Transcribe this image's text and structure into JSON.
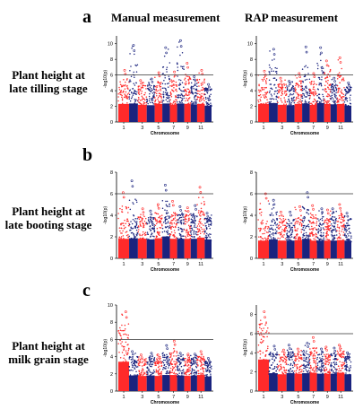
{
  "columns": [
    "Manual measurement",
    "RAP measurement"
  ],
  "panels": [
    {
      "letter": "a",
      "label": [
        "Plant height at",
        "late tilling stage"
      ]
    },
    {
      "letter": "b",
      "label": [
        "Plant height at",
        "late booting stage"
      ]
    },
    {
      "letter": "c",
      "label": [
        "Plant height at",
        "milk grain stage"
      ]
    }
  ],
  "colors": {
    "odd_chromosome": "#ff2a2a",
    "even_chromosome": "#1a237e",
    "threshold": "#333333"
  },
  "chart_data": [
    {
      "type": "scatter",
      "panel": "a",
      "column": "Manual measurement",
      "xlabel": "Chromosome",
      "ylabel": "-log10(p)",
      "xticks": [
        "1",
        "3",
        "5",
        "7",
        "9",
        "11"
      ],
      "yticks": [
        0,
        2,
        4,
        6,
        8,
        10
      ],
      "ylim": [
        0,
        11
      ],
      "threshold": 6,
      "chromosomes": [
        1,
        2,
        3,
        4,
        5,
        6,
        7,
        8,
        9,
        10,
        11,
        12
      ],
      "peak_max": [
        6.6,
        9.8,
        5.3,
        5.5,
        6.3,
        9.5,
        6.4,
        10.4,
        7.5,
        5.8,
        6.6,
        4.8
      ],
      "base": [
        4.2,
        4.3,
        4.0,
        3.9,
        4.2,
        4.3,
        4.0,
        4.3,
        4.2,
        4.1,
        4.2,
        3.8
      ]
    },
    {
      "type": "scatter",
      "panel": "a",
      "column": "RAP measurement",
      "xlabel": "Chromosome",
      "ylabel": "-log10(p)",
      "xticks": [
        "1",
        "3",
        "5",
        "7",
        "9",
        "11"
      ],
      "yticks": [
        0,
        2,
        4,
        6,
        8,
        10
      ],
      "ylim": [
        0,
        11
      ],
      "threshold": 6,
      "chromosomes": [
        1,
        2,
        3,
        4,
        5,
        6,
        7,
        8,
        9,
        10,
        11,
        12
      ],
      "peak_max": [
        6.5,
        9.3,
        5.6,
        5.2,
        6.2,
        9.6,
        6.2,
        9.5,
        7.8,
        5.6,
        8.2,
        5.0
      ],
      "base": [
        4.2,
        4.4,
        4.0,
        3.9,
        4.2,
        4.3,
        4.0,
        4.4,
        4.2,
        4.1,
        4.2,
        3.8
      ]
    },
    {
      "type": "scatter",
      "panel": "b",
      "column": "Manual measurement",
      "xlabel": "Chromosome",
      "ylabel": "-log10(p)",
      "xticks": [
        "1",
        "3",
        "5",
        "7",
        "9",
        "11"
      ],
      "yticks": [
        0,
        2,
        4,
        6,
        8
      ],
      "ylim": [
        0,
        8
      ],
      "threshold": 6,
      "chromosomes": [
        1,
        2,
        3,
        4,
        5,
        6,
        7,
        8,
        9,
        10,
        11,
        12
      ],
      "peak_max": [
        6.1,
        7.2,
        4.6,
        4.4,
        5.0,
        6.8,
        5.3,
        4.8,
        4.7,
        4.9,
        6.6,
        4.2
      ],
      "base": [
        3.3,
        3.4,
        3.3,
        3.2,
        3.4,
        3.7,
        3.3,
        3.3,
        3.3,
        3.3,
        3.5,
        3.2
      ]
    },
    {
      "type": "scatter",
      "panel": "b",
      "column": "RAP measurement",
      "xlabel": "Chromosome",
      "ylabel": "-log10(p)",
      "xticks": [
        "1",
        "3",
        "5",
        "7",
        "9",
        "11"
      ],
      "yticks": [
        0,
        2,
        4,
        6,
        8
      ],
      "ylim": [
        0,
        8
      ],
      "threshold": 6,
      "chromosomes": [
        1,
        2,
        3,
        4,
        5,
        6,
        7,
        8,
        9,
        10,
        11,
        12
      ],
      "peak_max": [
        6.0,
        5.4,
        4.3,
        4.3,
        4.8,
        6.1,
        4.9,
        4.6,
        4.5,
        4.6,
        5.0,
        4.2
      ],
      "base": [
        3.0,
        3.2,
        3.0,
        3.0,
        3.1,
        3.3,
        3.0,
        3.0,
        3.0,
        3.0,
        3.1,
        3.0
      ]
    },
    {
      "type": "scatter",
      "panel": "c",
      "column": "Manual measurement",
      "xlabel": "Chromosome",
      "ylabel": "-log10(p)",
      "xticks": [
        "1",
        "3",
        "5",
        "7",
        "9",
        "11"
      ],
      "yticks": [
        0,
        2,
        4,
        6,
        8,
        10
      ],
      "ylim": [
        0,
        10
      ],
      "threshold": 6,
      "chromosomes": [
        1,
        2,
        3,
        4,
        5,
        6,
        7,
        8,
        9,
        10,
        11,
        12
      ],
      "peak_max": [
        9.2,
        4.6,
        4.2,
        4.4,
        4.2,
        5.3,
        5.8,
        4.4,
        4.3,
        4.3,
        4.6,
        3.8
      ],
      "base": [
        6.2,
        3.3,
        3.2,
        3.3,
        3.2,
        3.4,
        3.4,
        3.3,
        3.2,
        3.3,
        3.4,
        3.1
      ]
    },
    {
      "type": "scatter",
      "panel": "c",
      "column": "RAP measurement",
      "xlabel": "Chromosome",
      "ylabel": "-log10(p)",
      "xticks": [
        "1",
        "3",
        "5",
        "7",
        "9",
        "11"
      ],
      "yticks": [
        0,
        2,
        4,
        6,
        8
      ],
      "ylim": [
        0,
        9
      ],
      "threshold": 6,
      "chromosomes": [
        1,
        2,
        3,
        4,
        5,
        6,
        7,
        8,
        9,
        10,
        11,
        12
      ],
      "peak_max": [
        8.3,
        4.7,
        4.3,
        4.8,
        4.4,
        5.0,
        5.6,
        4.4,
        4.6,
        4.5,
        4.8,
        4.0
      ],
      "base": [
        6.0,
        3.4,
        3.2,
        3.4,
        3.3,
        3.4,
        3.5,
        3.3,
        3.3,
        3.3,
        3.5,
        3.2
      ]
    }
  ]
}
